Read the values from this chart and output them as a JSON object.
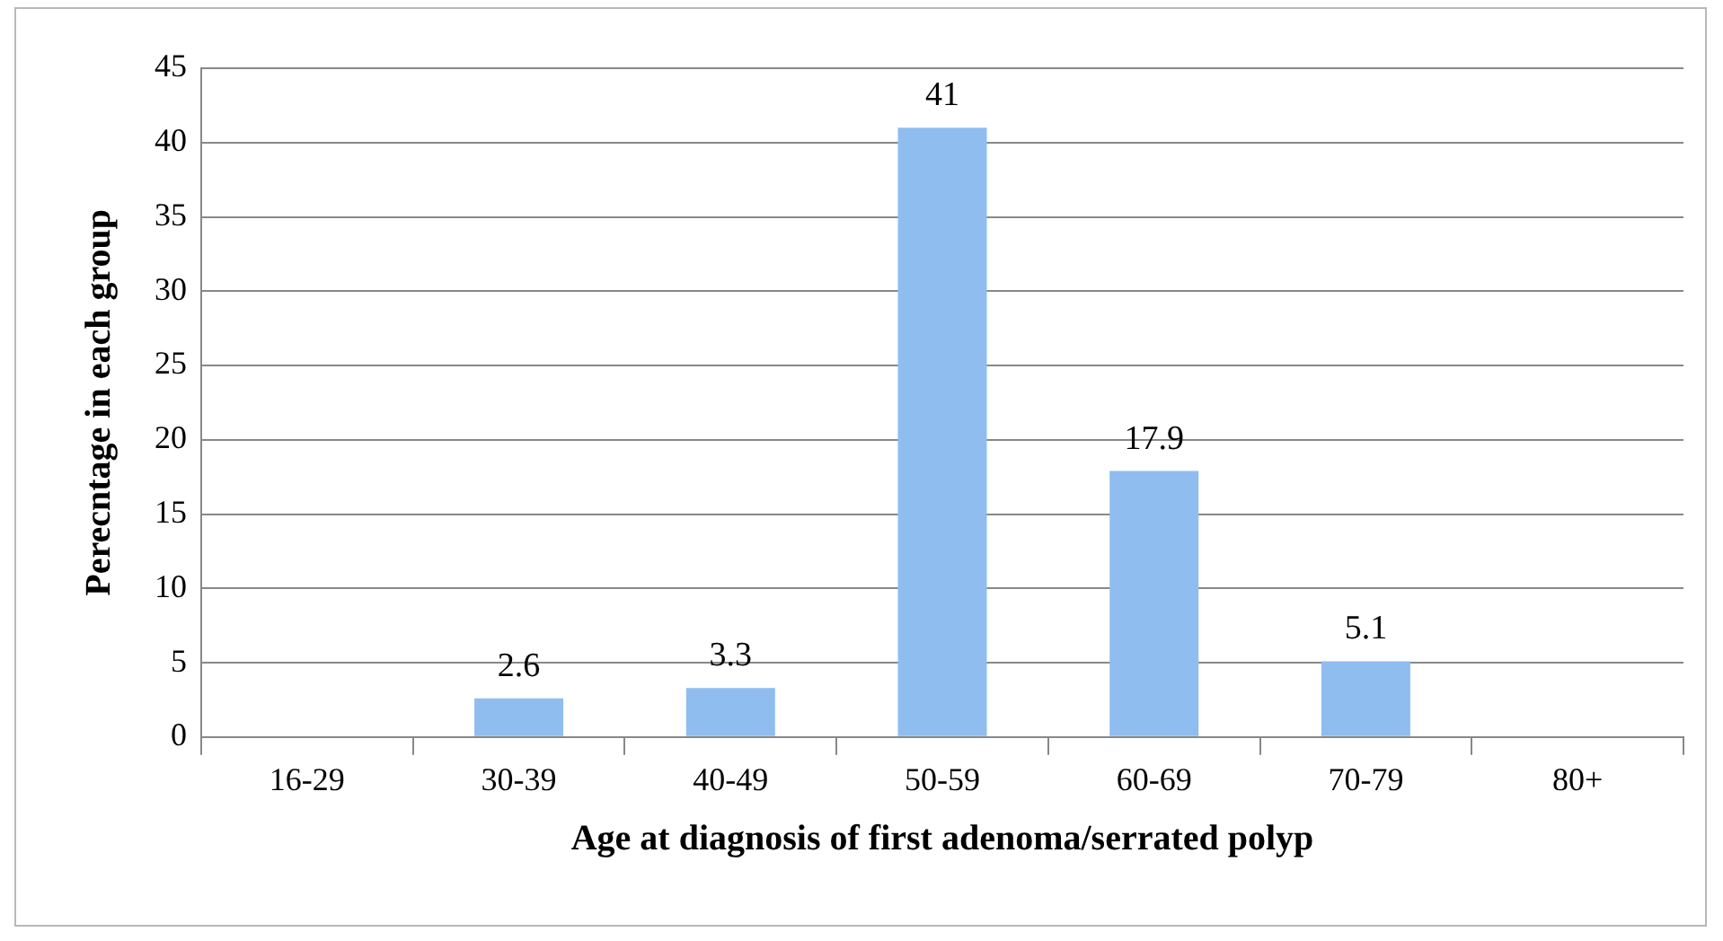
{
  "chart_data": {
    "type": "bar",
    "xlabel": "Age at diagnosis of first adenoma/serrated polyp",
    "ylabel": "Perecntage in each group",
    "categories": [
      "16-29",
      "30-39",
      "40-49",
      "50-59",
      "60-69",
      "70-79",
      "80+"
    ],
    "values": [
      0,
      2.6,
      3.3,
      41,
      17.9,
      5.1,
      0
    ],
    "value_labels": [
      null,
      "2.6",
      "3.3",
      "41",
      "17.9",
      "5.1",
      null
    ],
    "color": "#8fbdf0",
    "ylim": [
      0,
      45
    ],
    "yticks": [
      0,
      5,
      10,
      15,
      20,
      25,
      30,
      35,
      40,
      45
    ],
    "grid": "y",
    "legend": false
  }
}
